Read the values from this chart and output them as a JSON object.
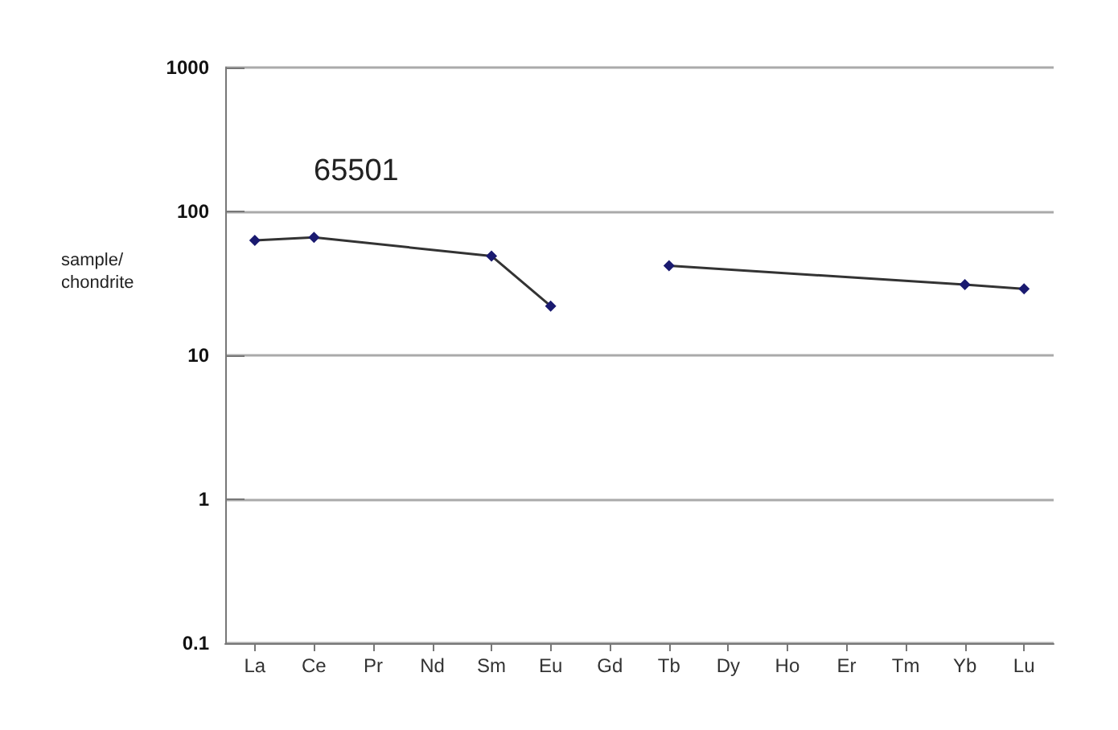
{
  "chart_data": {
    "type": "line",
    "title": "65501",
    "ylabel": "sample/\nchondrite",
    "categories": [
      "La",
      "Ce",
      "Pr",
      "Nd",
      "Sm",
      "Eu",
      "Gd",
      "Tb",
      "Dy",
      "Ho",
      "Er",
      "Tm",
      "Yb",
      "Lu"
    ],
    "series": [
      {
        "color": "#333333",
        "values": [
          63,
          66,
          null,
          null,
          49,
          22,
          null,
          null,
          null,
          null,
          null,
          null,
          null,
          null
        ]
      },
      {
        "color": "#333333",
        "values": [
          null,
          null,
          null,
          null,
          null,
          null,
          null,
          42,
          null,
          null,
          null,
          null,
          31,
          29
        ]
      }
    ],
    "log": "y",
    "ylim": [
      0.1,
      1000
    ],
    "yticks": [
      0.1,
      1,
      10,
      100,
      1000
    ],
    "grid": "y",
    "marker": "diamond",
    "line_style": "solid"
  }
}
